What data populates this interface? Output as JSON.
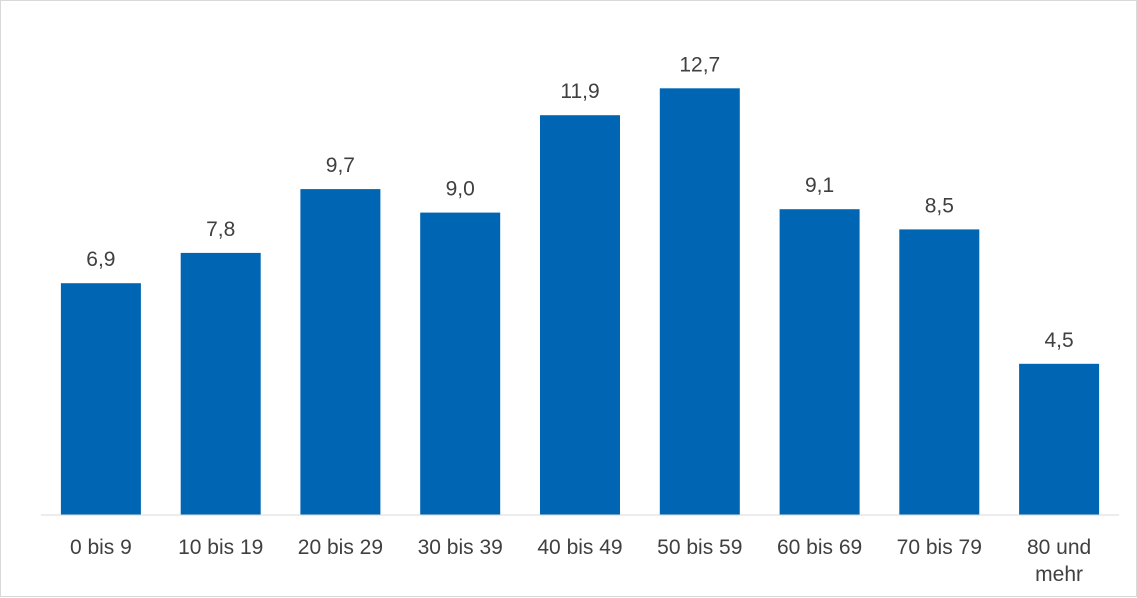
{
  "chart_data": {
    "type": "bar",
    "title": "",
    "xlabel": "",
    "ylabel": "",
    "categories": [
      "0 bis 9",
      "10 bis 19",
      "20 bis 29",
      "30 bis 39",
      "40 bis 49",
      "50 bis 59",
      "60 bis 69",
      "70 bis 79",
      "80 und mehr"
    ],
    "value_labels": [
      "6,9",
      "7,8",
      "9,7",
      "9,0",
      "11,9",
      "12,7",
      "9,1",
      "8,5",
      "4,5"
    ],
    "values": [
      6.9,
      7.8,
      9.7,
      9.0,
      11.9,
      12.7,
      9.1,
      8.5,
      4.5
    ],
    "ylim": [
      0,
      14
    ],
    "grid": false,
    "legend": "none",
    "bar_color": "#0066b3"
  }
}
